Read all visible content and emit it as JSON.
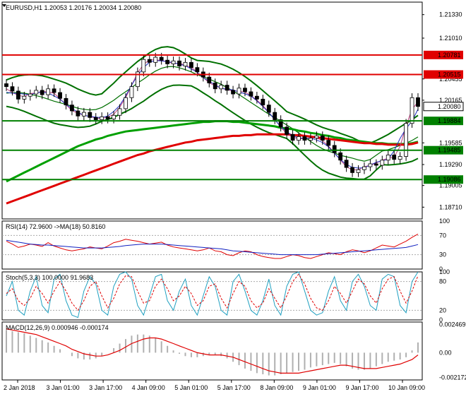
{
  "chart_data": [
    {
      "type": "candlestick",
      "title": "EURUSD,H1",
      "ohlc_values": "1.20053 1.20176 1.20034 1.20080",
      "symbol": "EURUSD",
      "timeframe": "H1",
      "y_ticks": [
        "1.21330",
        "1.21010",
        "1.20455",
        "1.20165",
        "1.19585",
        "1.19290",
        "1.19005",
        "1.18710"
      ],
      "ylim": [
        1.1855,
        1.215
      ],
      "x_ticks": [
        "2 Jan 2018",
        "3 Jan 01:00",
        "3 Jan 17:00",
        "4 Jan 09:00",
        "5 Jan 01:00",
        "5 Jan 17:00",
        "8 Jan 09:00",
        "9 Jan 01:00",
        "9 Jan 17:00",
        "10 Jan 09:00"
      ],
      "horizontal_levels": [
        {
          "value": 1.20781,
          "label": "1.20781",
          "color": "#e00000"
        },
        {
          "value": 1.20515,
          "label": "1.20515",
          "color": "#e00000"
        },
        {
          "value": 1.19884,
          "label": "1.19884",
          "color": "#008000"
        },
        {
          "value": 1.19485,
          "label": "1.19485",
          "color": "#008000"
        },
        {
          "value": 1.19086,
          "label": "1.19086",
          "color": "#008000"
        }
      ],
      "current_price": {
        "value": 1.2008,
        "label": "1.20080"
      },
      "close_series": [
        1.2035,
        1.2029,
        1.2018,
        1.2022,
        1.2025,
        1.203,
        1.2024,
        1.2032,
        1.2027,
        1.2019,
        1.201,
        1.2002,
        1.1995,
        1.2,
        1.1993,
        1.199,
        1.1994,
        1.1991,
        1.1996,
        1.2005,
        1.202,
        1.2035,
        1.2055,
        1.2072,
        1.2068,
        1.2075,
        1.2071,
        1.2066,
        1.207,
        1.2063,
        1.2068,
        1.2061,
        1.2055,
        1.2048,
        1.204,
        1.2032,
        1.2037,
        1.203,
        1.2025,
        1.2033,
        1.2028,
        1.2022,
        1.2018,
        1.201,
        1.2,
        1.199,
        1.198,
        1.197,
        1.1962,
        1.1967,
        1.1962,
        1.1965,
        1.1968,
        1.1962,
        1.1955,
        1.1945,
        1.1935,
        1.1925,
        1.1918,
        1.1922,
        1.1926,
        1.193,
        1.1928,
        1.1935,
        1.1942,
        1.1936,
        1.194,
        1.1985,
        1.202,
        1.2008
      ],
      "ma_series": [
        {
          "color": "#00a000",
          "values": [
            1.1906,
            1.191,
            1.1914,
            1.1918,
            1.1922,
            1.1926,
            1.193,
            1.1934,
            1.1938,
            1.1942,
            1.1946,
            1.195,
            1.1954,
            1.1957,
            1.196,
            1.1963,
            1.1965,
            1.1968,
            1.197,
            1.1972,
            1.1974,
            1.1975,
            1.1976,
            1.1977,
            1.1978,
            1.1979,
            1.198,
            1.1981,
            1.1982,
            1.1983,
            1.1984,
            1.1985,
            1.1986,
            1.1987,
            1.1987,
            1.1988,
            1.1988,
            1.1988,
            1.1987,
            1.1987,
            1.1986,
            1.1985,
            1.1984,
            1.1983,
            1.1982,
            1.1981,
            1.1979,
            1.1978,
            1.1977,
            1.1975,
            1.1974,
            1.1972,
            1.1971,
            1.1969,
            1.1968,
            1.1966,
            1.1965,
            1.1963,
            1.1962,
            1.1961,
            1.196,
            1.1959,
            1.1958,
            1.1958,
            1.1957,
            1.1957,
            1.1957,
            1.1957,
            1.1958,
            1.196
          ]
        },
        {
          "color": "#e00000",
          "values": [
            1.1876,
            1.1879,
            1.1882,
            1.1885,
            1.1888,
            1.1891,
            1.1894,
            1.1897,
            1.19,
            1.1903,
            1.1906,
            1.1909,
            1.1912,
            1.1915,
            1.1918,
            1.1921,
            1.1924,
            1.1927,
            1.193,
            1.1933,
            1.1936,
            1.1939,
            1.1942,
            1.1944,
            1.1947,
            1.1949,
            1.1951,
            1.1953,
            1.1955,
            1.1957,
            1.1959,
            1.196,
            1.1962,
            1.1963,
            1.1964,
            1.1965,
            1.1966,
            1.1967,
            1.1968,
            1.1968,
            1.1969,
            1.1969,
            1.197,
            1.197,
            1.197,
            1.197,
            1.197,
            1.197,
            1.1969,
            1.1969,
            1.1968,
            1.1967,
            1.1966,
            1.1965,
            1.1964,
            1.1963,
            1.1962,
            1.1961,
            1.196,
            1.1959,
            1.1958,
            1.1958,
            1.1957,
            1.1957,
            1.1956,
            1.1956,
            1.1956,
            1.1956,
            1.1957,
            1.1959
          ]
        }
      ]
    },
    {
      "type": "line",
      "title": "RSI(14) 72.9600 ->MA(18) 50.8160",
      "y_ticks": [
        "100",
        "70",
        "30",
        "0"
      ],
      "ylim": [
        0,
        100
      ],
      "series": [
        {
          "color": "#e00000",
          "values": [
            58,
            52,
            45,
            48,
            52,
            50,
            47,
            55,
            48,
            44,
            40,
            38,
            40,
            42,
            46,
            44,
            42,
            48,
            55,
            58,
            62,
            60,
            58,
            55,
            52,
            54,
            56,
            50,
            46,
            44,
            42,
            40,
            38,
            40,
            44,
            38,
            36,
            30,
            28,
            34,
            38,
            36,
            30,
            26,
            24,
            22,
            22,
            26,
            30,
            28,
            24,
            22,
            26,
            30,
            34,
            32,
            30,
            36,
            40,
            38,
            34,
            38,
            44,
            50,
            48,
            46,
            52,
            58,
            66,
            73
          ]
        },
        {
          "color": "#1020c0",
          "values": [
            60,
            58,
            56,
            54,
            52,
            51,
            50,
            50,
            49,
            48,
            47,
            46,
            45,
            44,
            44,
            44,
            44,
            45,
            46,
            47,
            49,
            50,
            51,
            52,
            52,
            52,
            52,
            51,
            50,
            49,
            48,
            47,
            46,
            45,
            44,
            43,
            42,
            40,
            38,
            37,
            36,
            35,
            34,
            33,
            32,
            31,
            30,
            30,
            30,
            30,
            30,
            30,
            30,
            31,
            32,
            33,
            34,
            35,
            36,
            37,
            38,
            39,
            40,
            41,
            42,
            43,
            44,
            45,
            48,
            51
          ]
        }
      ]
    },
    {
      "type": "line",
      "title": "Stoch(5,3,3) 100.0000 91.9683",
      "y_ticks": [
        "100",
        "80",
        "20",
        "0"
      ],
      "ylim": [
        0,
        100
      ],
      "series": [
        {
          "color": "#20a0c0",
          "values": [
            50,
            80,
            20,
            10,
            60,
            90,
            30,
            15,
            85,
            95,
            40,
            10,
            5,
            60,
            90,
            75,
            20,
            10,
            70,
            95,
            100,
            85,
            30,
            10,
            50,
            90,
            95,
            40,
            20,
            60,
            85,
            30,
            10,
            50,
            90,
            70,
            20,
            10,
            80,
            95,
            60,
            20,
            10,
            40,
            85,
            30,
            10,
            70,
            95,
            100,
            60,
            20,
            10,
            15,
            60,
            90,
            40,
            20,
            80,
            95,
            70,
            30,
            20,
            85,
            95,
            90,
            30,
            15,
            80,
            100
          ]
        },
        {
          "color": "#e00000",
          "values": [
            55,
            65,
            40,
            30,
            45,
            70,
            55,
            35,
            60,
            80,
            60,
            35,
            20,
            40,
            70,
            80,
            50,
            25,
            45,
            75,
            92,
            90,
            60,
            35,
            40,
            70,
            85,
            65,
            40,
            50,
            70,
            55,
            30,
            40,
            70,
            75,
            45,
            25,
            55,
            80,
            70,
            40,
            25,
            35,
            65,
            45,
            25,
            50,
            80,
            95,
            75,
            45,
            25,
            20,
            40,
            70,
            55,
            35,
            60,
            85,
            75,
            50,
            35,
            65,
            85,
            90,
            60,
            35,
            60,
            92
          ]
        }
      ]
    },
    {
      "type": "histogram",
      "title": "MACD(12,26,9) 0.000946 -0.000174",
      "y_ticks": [
        "0.002469",
        "0.00",
        "-0.002172"
      ],
      "ylim": [
        -0.0024,
        0.0027
      ],
      "hist_values": [
        0.002,
        0.0019,
        0.0018,
        0.0017,
        0.0015,
        0.0013,
        0.0011,
        0.0009,
        0.0006,
        0.0003,
        0.0,
        -0.0003,
        -0.0005,
        -0.0006,
        -0.0006,
        -0.0005,
        -0.0003,
        0.0,
        0.0004,
        0.0008,
        0.0012,
        0.0015,
        0.0016,
        0.0016,
        0.0015,
        0.0013,
        0.001,
        0.0006,
        0.0002,
        -0.0001,
        -0.0003,
        -0.0004,
        -0.0004,
        -0.0003,
        -0.0002,
        -0.0002,
        -0.0003,
        -0.0005,
        -0.0008,
        -0.0011,
        -0.0014,
        -0.0016,
        -0.0018,
        -0.0019,
        -0.002,
        -0.002,
        -0.0019,
        -0.0018,
        -0.0017,
        -0.0016,
        -0.0015,
        -0.0013,
        -0.0012,
        -0.0011,
        -0.001,
        -0.0009,
        -0.001,
        -0.0012,
        -0.0014,
        -0.0015,
        -0.0015,
        -0.0014,
        -0.0012,
        -0.001,
        -0.0008,
        -0.0007,
        -0.0006,
        -0.0004,
        0.0002,
        0.0009
      ],
      "signal_color": "#e00000",
      "signal_values": [
        0.0021,
        0.002,
        0.0019,
        0.0018,
        0.0017,
        0.0016,
        0.0014,
        0.0012,
        0.001,
        0.0008,
        0.0006,
        0.0003,
        0.0001,
        -0.0001,
        -0.0002,
        -0.0003,
        -0.0003,
        -0.0002,
        0.0,
        0.0002,
        0.0005,
        0.0008,
        0.001,
        0.0012,
        0.0013,
        0.0013,
        0.0012,
        0.001,
        0.0008,
        0.0006,
        0.0004,
        0.0002,
        0.0,
        -0.0001,
        -0.0002,
        -0.0002,
        -0.0002,
        -0.0003,
        -0.0004,
        -0.0006,
        -0.0008,
        -0.001,
        -0.0012,
        -0.0014,
        -0.0016,
        -0.0017,
        -0.0018,
        -0.0018,
        -0.0018,
        -0.0018,
        -0.0017,
        -0.0016,
        -0.0015,
        -0.0014,
        -0.0013,
        -0.0012,
        -0.0011,
        -0.0011,
        -0.0012,
        -0.0013,
        -0.0014,
        -0.0014,
        -0.0014,
        -0.0013,
        -0.0012,
        -0.0011,
        -0.001,
        -0.0008,
        -0.0006,
        -0.0002
      ]
    }
  ]
}
